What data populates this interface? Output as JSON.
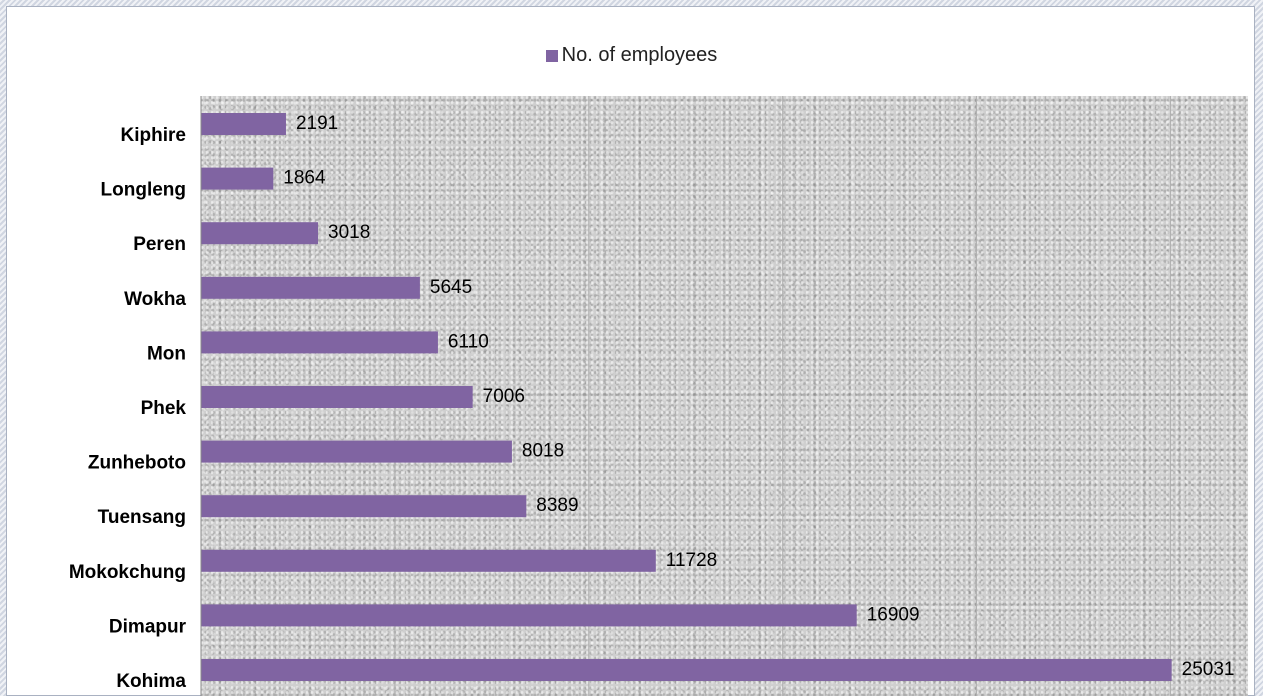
{
  "chart_data": {
    "type": "bar",
    "orientation": "horizontal",
    "categories": [
      "Kiphire",
      "Longleng",
      "Peren",
      "Wokha",
      "Mon",
      "Phek",
      "Zunheboto",
      "Tuensang",
      "Mokokchung",
      "Dimapur",
      "Kohima"
    ],
    "series": [
      {
        "name": "No. of employees",
        "values": [
          2191,
          1864,
          3018,
          5645,
          6110,
          7006,
          8018,
          8389,
          11728,
          16909,
          25031
        ]
      }
    ],
    "xlim": [
      0,
      27000
    ],
    "grid": "vertical",
    "legend_position": "top",
    "bar_color": "#8064a2"
  }
}
